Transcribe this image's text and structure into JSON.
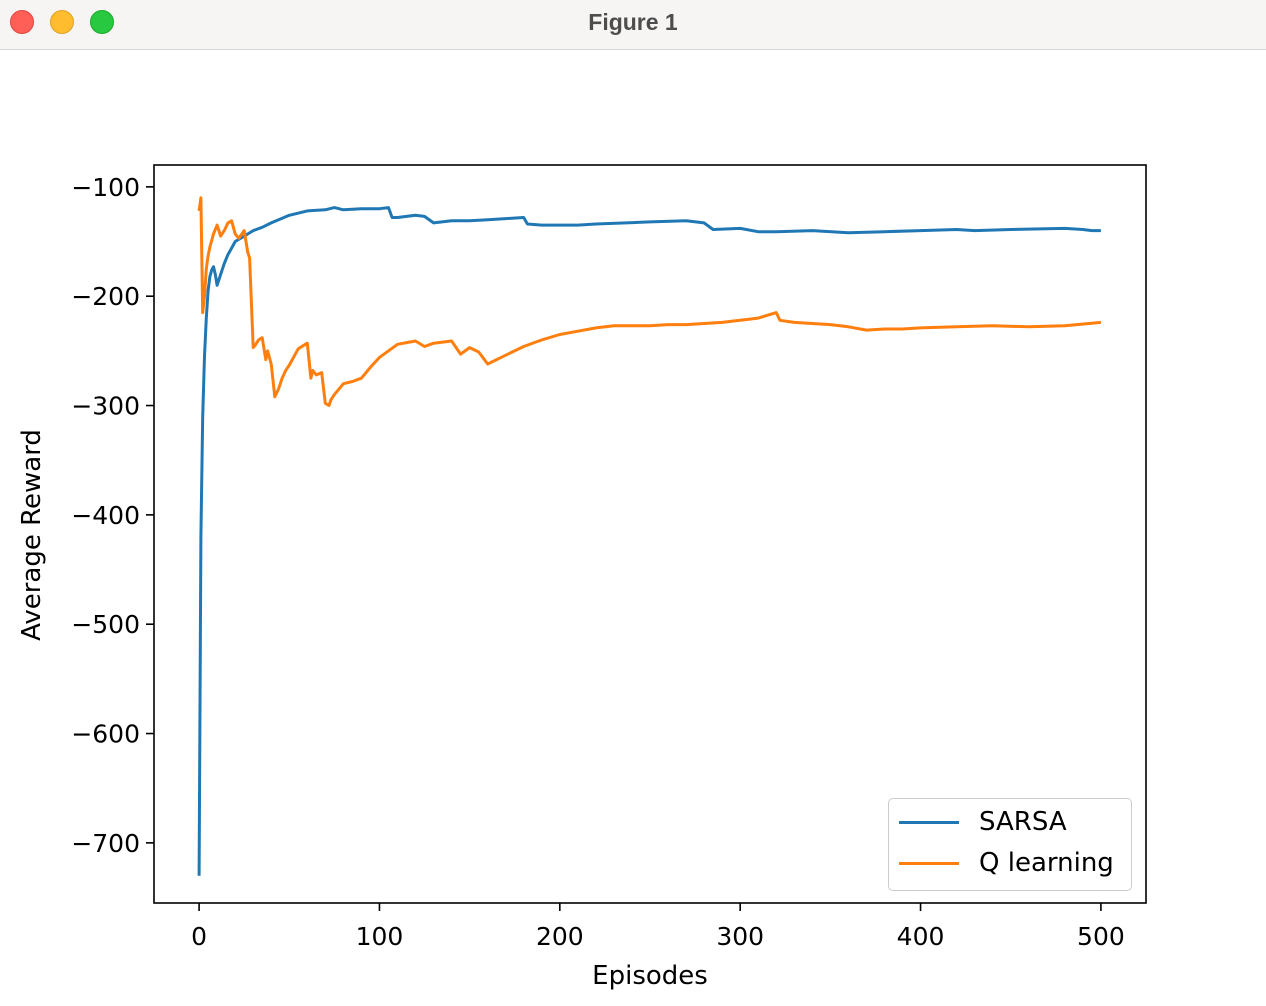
{
  "window": {
    "title": "Figure 1",
    "controls": [
      "close",
      "minimize",
      "maximize"
    ]
  },
  "chart_data": {
    "type": "line",
    "title": "",
    "xlabel": "Episodes",
    "ylabel": "Average Reward",
    "xlim": [
      -25,
      525
    ],
    "ylim": [
      -755,
      -80
    ],
    "xticks": [
      0,
      100,
      200,
      300,
      400,
      500
    ],
    "xtick_labels": [
      "0",
      "100",
      "200",
      "300",
      "400",
      "500"
    ],
    "yticks": [
      -100,
      -200,
      -300,
      -400,
      -500,
      -600,
      -700
    ],
    "ytick_labels": [
      "−100",
      "−200",
      "−300",
      "−400",
      "−500",
      "−600",
      "−700"
    ],
    "grid": false,
    "legend_position": "lower-right",
    "series": [
      {
        "name": "SARSA",
        "color": "#1f77b4",
        "x": [
          0,
          1,
          2,
          3,
          4,
          5,
          6,
          7,
          8,
          9,
          10,
          12,
          14,
          16,
          18,
          20,
          25,
          30,
          35,
          40,
          50,
          60,
          70,
          75,
          80,
          90,
          100,
          105,
          107,
          110,
          120,
          125,
          130,
          140,
          150,
          160,
          170,
          180,
          182,
          190,
          200,
          210,
          220,
          250,
          270,
          280,
          285,
          300,
          310,
          320,
          340,
          360,
          380,
          400,
          420,
          430,
          450,
          480,
          490,
          495,
          500
        ],
        "y": [
          -730,
          -420,
          -310,
          -255,
          -220,
          -195,
          -182,
          -176,
          -173,
          -180,
          -190,
          -180,
          -170,
          -162,
          -156,
          -150,
          -145,
          -140,
          -137,
          -133,
          -126,
          -122,
          -121,
          -119,
          -121,
          -120,
          -120,
          -119,
          -128,
          -128,
          -126,
          -127,
          -133,
          -131,
          -131,
          -130,
          -129,
          -128,
          -134,
          -135,
          -135,
          -135,
          -134,
          -132,
          -131,
          -133,
          -139,
          -138,
          -141,
          -141,
          -140,
          -142,
          -141,
          -140,
          -139,
          -140,
          -139,
          -138,
          -139,
          -140,
          -140
        ]
      },
      {
        "name": "Q learning",
        "color": "#ff7f0e",
        "x": [
          0,
          1,
          2,
          3,
          4,
          5,
          6,
          8,
          10,
          12,
          14,
          16,
          18,
          20,
          22,
          25,
          27,
          28,
          30,
          31,
          33,
          35,
          37,
          38,
          40,
          42,
          44,
          46,
          48,
          50,
          55,
          60,
          62,
          63,
          65,
          68,
          70,
          72,
          73,
          75,
          80,
          85,
          90,
          95,
          100,
          110,
          120,
          125,
          130,
          140,
          145,
          150,
          155,
          160,
          170,
          180,
          190,
          200,
          210,
          220,
          230,
          240,
          250,
          260,
          270,
          280,
          290,
          300,
          310,
          320,
          322,
          330,
          340,
          350,
          360,
          370,
          380,
          390,
          400,
          420,
          440,
          460,
          480,
          500
        ],
        "y": [
          -122,
          -110,
          -215,
          -200,
          -175,
          -163,
          -155,
          -143,
          -135,
          -145,
          -140,
          -133,
          -131,
          -143,
          -147,
          -140,
          -160,
          -165,
          -247,
          -245,
          -240,
          -238,
          -258,
          -250,
          -262,
          -292,
          -285,
          -275,
          -268,
          -263,
          -248,
          -243,
          -275,
          -268,
          -272,
          -270,
          -298,
          -300,
          -295,
          -290,
          -280,
          -278,
          -275,
          -265,
          -256,
          -244,
          -241,
          -246,
          -243,
          -241,
          -253,
          -247,
          -251,
          -262,
          -254,
          -246,
          -240,
          -235,
          -232,
          -229,
          -227,
          -227,
          -227,
          -226,
          -226,
          -225,
          -224,
          -222,
          -220,
          -215,
          -222,
          -224,
          -225,
          -226,
          -228,
          -231,
          -230,
          -230,
          -229,
          -228,
          -227,
          -228,
          -227,
          -224
        ]
      }
    ]
  }
}
